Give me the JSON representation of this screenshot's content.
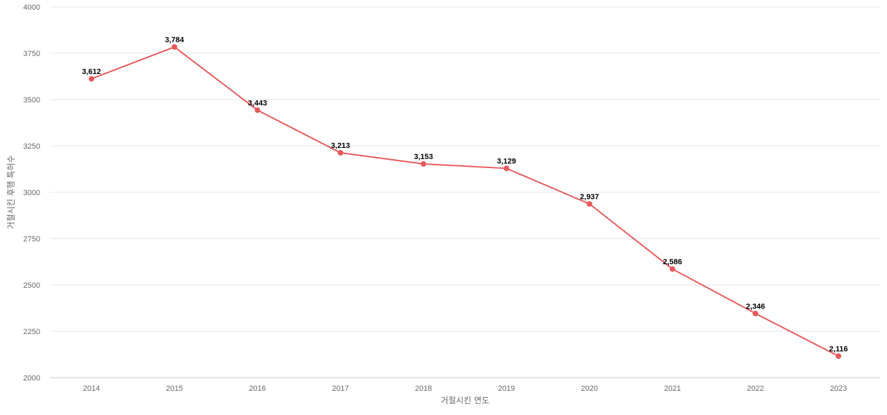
{
  "chart_data": {
    "type": "line",
    "title": "",
    "xlabel": "거절시킨 연도",
    "ylabel": "거절시킨 후행 특허수",
    "x": [
      "2014",
      "2015",
      "2016",
      "2017",
      "2018",
      "2019",
      "2020",
      "2021",
      "2022",
      "2023"
    ],
    "series": [
      {
        "values": [
          3612,
          3784,
          3443,
          3213,
          3153,
          3129,
          2937,
          2586,
          2346,
          2116
        ],
        "labels": [
          "3,612",
          "3,784",
          "3,443",
          "3,213",
          "3,153",
          "3,129",
          "2,937",
          "2,586",
          "2,346",
          "2,116"
        ],
        "color": "#e8595a"
      }
    ],
    "ylim": [
      2000,
      4000
    ],
    "yticks": [
      "2000",
      "2250",
      "2500",
      "2750",
      "3000",
      "3250",
      "3500",
      "3750",
      "4000"
    ],
    "grid": true,
    "legend": "none"
  }
}
